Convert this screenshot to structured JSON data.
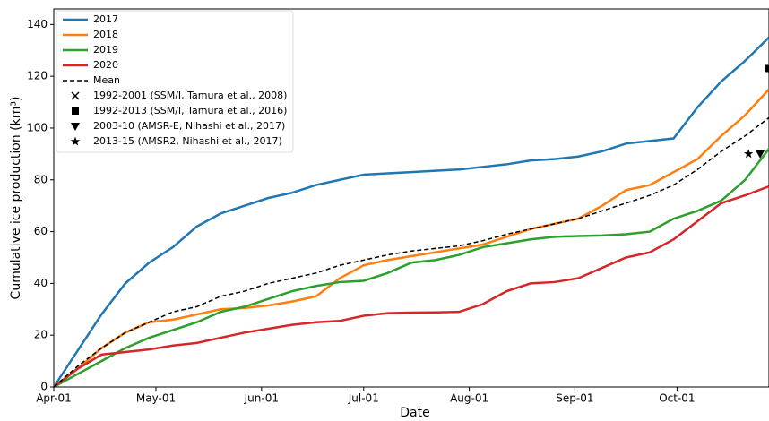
{
  "chart_data": {
    "type": "line",
    "xlabel": "Date",
    "ylabel": "Cumulative ice production (km³)",
    "x": [
      0,
      7,
      14,
      21,
      28,
      35,
      42,
      49,
      56,
      63,
      70,
      77,
      84,
      91,
      98,
      105,
      112,
      119,
      126,
      133,
      140,
      147,
      154,
      161,
      168,
      175,
      182,
      189,
      196,
      203,
      210
    ],
    "xlim": [
      0,
      210
    ],
    "ylim": [
      0,
      146
    ],
    "xticks": [
      {
        "value": 0,
        "label": "Apr-01"
      },
      {
        "value": 30,
        "label": "May-01"
      },
      {
        "value": 61,
        "label": "Jun-01"
      },
      {
        "value": 91,
        "label": "Jul-01"
      },
      {
        "value": 122,
        "label": "Aug-01"
      },
      {
        "value": 153,
        "label": "Sep-01"
      },
      {
        "value": 183,
        "label": "Oct-01"
      }
    ],
    "yticks": [
      0,
      20,
      40,
      60,
      80,
      100,
      120,
      140
    ],
    "legend": "upper left",
    "series": [
      {
        "name": "2017",
        "color": "#1f77b4",
        "dash": false,
        "values": [
          0,
          14,
          28,
          40,
          48,
          54,
          62,
          67,
          70,
          73,
          75,
          78,
          80,
          82,
          82.5,
          83,
          83.5,
          84,
          85,
          86,
          87.5,
          88,
          89,
          91,
          94,
          95,
          96,
          108,
          118,
          126,
          135
        ]
      },
      {
        "name": "2018",
        "color": "#ff7f0e",
        "dash": false,
        "values": [
          0,
          7,
          15,
          21,
          25,
          26,
          28,
          30,
          30.5,
          31.5,
          33,
          35,
          42,
          47,
          49,
          50.5,
          52,
          53.5,
          55,
          58,
          61,
          63,
          65,
          70,
          76,
          78,
          83,
          88,
          97,
          105,
          115
        ]
      },
      {
        "name": "2019",
        "color": "#2ca02c",
        "dash": false,
        "values": [
          0,
          5,
          10,
          15,
          19,
          22,
          25,
          29,
          31,
          34,
          37,
          39,
          40.5,
          41,
          44,
          48,
          49,
          51,
          54,
          55.5,
          57,
          58,
          58.3,
          58.5,
          59,
          60,
          65,
          68,
          72,
          80,
          92
        ]
      },
      {
        "name": "2020",
        "color": "#d62728",
        "dash": false,
        "values": [
          0,
          7,
          12.5,
          13.5,
          14.5,
          16,
          17,
          19,
          21,
          22.5,
          24,
          25,
          25.5,
          27.5,
          28.5,
          28.7,
          28.8,
          29,
          32,
          37,
          40,
          40.5,
          42,
          46,
          50,
          52,
          57,
          64,
          71,
          74,
          77.5
        ]
      },
      {
        "name": "Mean",
        "color": "#000000",
        "dash": true,
        "values": [
          0,
          8,
          15,
          21,
          25,
          29,
          31,
          35,
          37,
          40,
          42,
          44,
          47,
          49,
          51,
          52.5,
          53.5,
          54.5,
          56.5,
          59,
          61,
          63,
          65,
          68,
          71,
          74,
          78,
          84,
          91,
          97,
          104
        ]
      }
    ],
    "markers": [
      {
        "name": "1992-2001 (SSM/I, Tamura et al., 2008)",
        "marker": "x",
        "x": [],
        "values": []
      },
      {
        "name": "1992-2013 (SSM/I, Tamura et al., 2016)",
        "marker": "square",
        "x": [
          210
        ],
        "values": [
          123
        ]
      },
      {
        "name": "2003-10 (AMSR-E, Nihashi et al., 2017)",
        "marker": "triangle",
        "x": [
          207.4
        ],
        "values": [
          90
        ]
      },
      {
        "name": "2013-15 (AMSR2, Nihashi et al., 2017)",
        "marker": "star",
        "x": [
          204
        ],
        "values": [
          90
        ]
      }
    ]
  }
}
